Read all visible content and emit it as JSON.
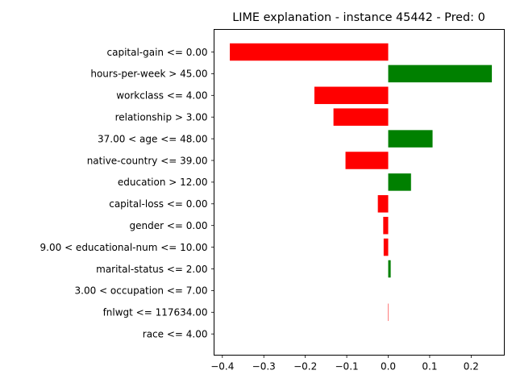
{
  "chart_data": {
    "type": "bar",
    "orientation": "horizontal",
    "title": "LIME explanation - instance 45442 - Pred: 0",
    "xlabel": "",
    "ylabel": "",
    "xlim": [
      -0.42,
      0.28
    ],
    "xticks": [
      -0.4,
      -0.3,
      -0.2,
      -0.1,
      0.0,
      0.1,
      0.2
    ],
    "xtick_labels": [
      "−0.4",
      "−0.3",
      "−0.2",
      "−0.1",
      "0.0",
      "0.1",
      "0.2"
    ],
    "grid": false,
    "legend": "none",
    "positive_color": "#008000",
    "negative_color": "#ff0000",
    "categories": [
      "capital-gain <= 0.00",
      "hours-per-week > 45.00",
      "workclass <= 4.00",
      "relationship > 3.00",
      "37.00 < age <= 48.00",
      "native-country <= 39.00",
      "education > 12.00",
      "capital-loss <= 0.00",
      "gender <= 0.00",
      "9.00 < educational-num <= 10.00",
      "marital-status <= 2.00",
      "3.00 < occupation <= 7.00",
      "fnlwgt <= 117634.00",
      "race <= 4.00"
    ],
    "values": [
      -0.382,
      0.25,
      -0.178,
      -0.132,
      0.107,
      -0.103,
      0.055,
      -0.025,
      -0.012,
      -0.011,
      0.006,
      0.0,
      -0.001,
      0.0
    ]
  }
}
